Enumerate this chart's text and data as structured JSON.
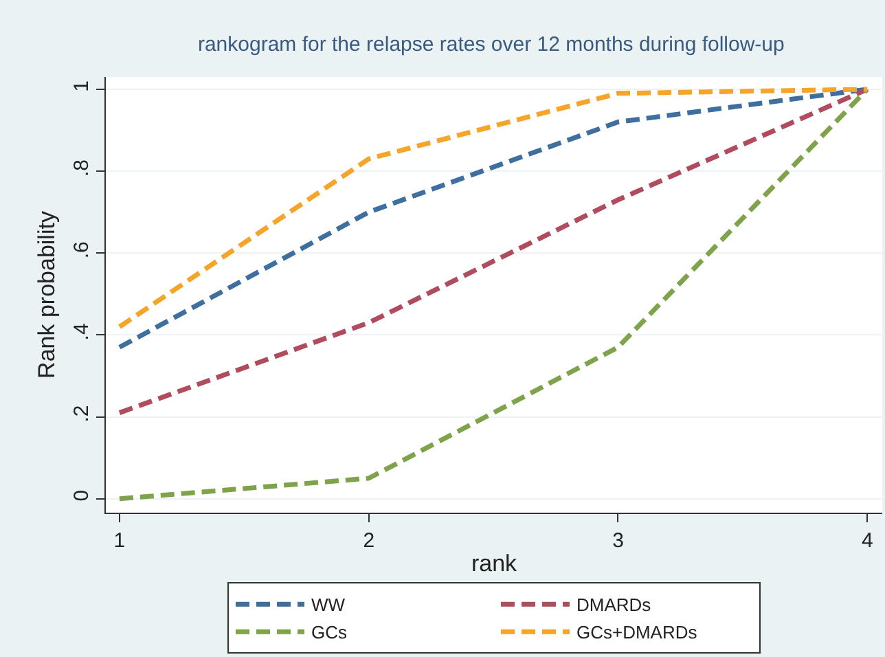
{
  "chart_data": {
    "type": "line",
    "title": "rankogram for the relapse rates over 12 months during follow-up",
    "xlabel": "rank",
    "ylabel": "Rank probability",
    "x": [
      1,
      2,
      3,
      4
    ],
    "series": [
      {
        "name": "WW",
        "color": "#3e6f9f",
        "values": [
          0.37,
          0.7,
          0.92,
          1.0
        ]
      },
      {
        "name": "DMARDs",
        "color": "#b04c5e",
        "values": [
          0.21,
          0.43,
          0.73,
          1.0
        ]
      },
      {
        "name": "GCs",
        "color": "#7fa34a",
        "values": [
          0.0,
          0.05,
          0.37,
          1.0
        ]
      },
      {
        "name": "GCs+DMARDs",
        "color": "#f4a52a",
        "values": [
          0.42,
          0.83,
          0.99,
          1.0
        ]
      }
    ],
    "xlim": [
      0.945,
      4.06
    ],
    "xticks": [
      1,
      2,
      3,
      4
    ],
    "ylim": [
      -0.034,
      1.03
    ],
    "yticks": [
      {
        "value": 0,
        "label": "0"
      },
      {
        "value": 0.2,
        "label": ".2"
      },
      {
        "value": 0.4,
        "label": ".4"
      },
      {
        "value": 0.6,
        "label": ".6"
      },
      {
        "value": 0.8,
        "label": ".8"
      },
      {
        "value": 1,
        "label": "1"
      }
    ],
    "grid": "y",
    "legend": "bottom",
    "marker": "none",
    "line_style": "dashed"
  }
}
